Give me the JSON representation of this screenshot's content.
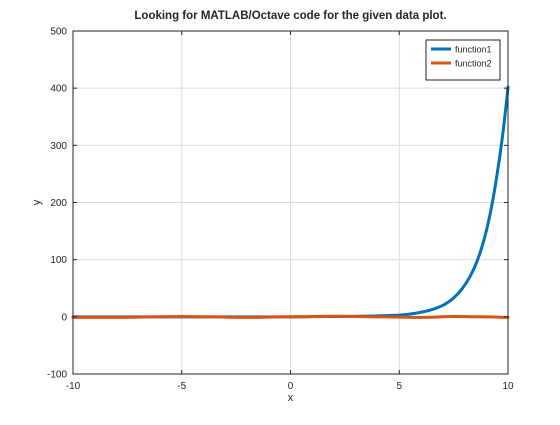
{
  "chart_data": {
    "type": "line",
    "title": "Looking for MATLAB/Octave code for the given data plot.",
    "xlabel": "x",
    "ylabel": "y",
    "xlim": [
      -10,
      10
    ],
    "ylim": [
      -100,
      500
    ],
    "xticks": [
      -10,
      -5,
      0,
      5,
      10
    ],
    "yticks": [
      -100,
      0,
      100,
      200,
      300,
      400,
      500
    ],
    "grid": true,
    "legend_position": "top-right",
    "series": [
      {
        "name": "function1",
        "color": "#0072BD",
        "x": [
          -10,
          -8,
          -6,
          -4,
          -2,
          0,
          2,
          4,
          5,
          6,
          7,
          8,
          8.5,
          9,
          9.5,
          10
        ],
        "y": [
          0,
          0,
          0,
          0,
          0,
          0,
          0.6,
          1.7,
          3,
          8,
          20,
          55,
          90,
          150,
          250,
          402
        ]
      },
      {
        "name": "function2",
        "color": "#D95319",
        "x": [
          -10,
          -8,
          -6,
          -5,
          -4,
          -2,
          0,
          2,
          4,
          6,
          7.5,
          9,
          10
        ],
        "y": [
          -1,
          -1,
          0,
          0.5,
          0,
          -1,
          0,
          1,
          0,
          -1,
          0.5,
          0,
          -1
        ]
      }
    ]
  }
}
